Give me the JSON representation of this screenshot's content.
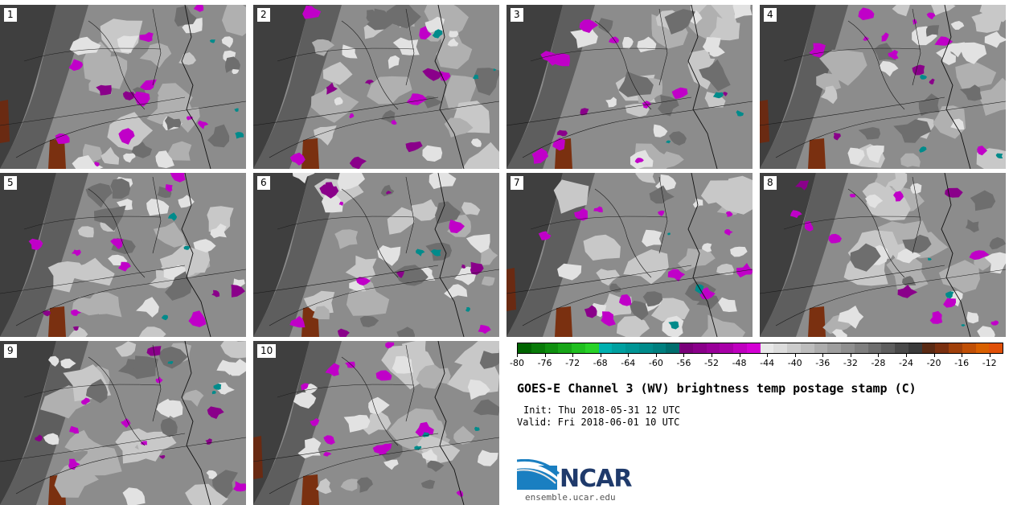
{
  "panels": [
    {
      "label": "1"
    },
    {
      "label": "2"
    },
    {
      "label": "3"
    },
    {
      "label": "4"
    },
    {
      "label": "5"
    },
    {
      "label": "6"
    },
    {
      "label": "7"
    },
    {
      "label": "8"
    },
    {
      "label": "9"
    },
    {
      "label": "10"
    }
  ],
  "colorbar": {
    "min": -80,
    "max": -10,
    "step": 2,
    "tick_labels": [
      "-80",
      "-76",
      "-72",
      "-68",
      "-64",
      "-60",
      "-56",
      "-52",
      "-48",
      "-44",
      "-40",
      "-36",
      "-32",
      "-28",
      "-24",
      "-20",
      "-16",
      "-12"
    ],
    "colors": [
      "#006400",
      "#087a08",
      "#0f8f0f",
      "#17a517",
      "#1fbf1f",
      "#28d228",
      "#00b0b0",
      "#00a0a0",
      "#009595",
      "#008b8b",
      "#007f7f",
      "#006e6e",
      "#7a007a",
      "#8a008a",
      "#990099",
      "#a800a8",
      "#bf00bf",
      "#d400d4",
      "#e8e8e8",
      "#dcdcdc",
      "#cccccc",
      "#bdbdbd",
      "#adadad",
      "#9e9e9e",
      "#8f8f8f",
      "#7f7f7f",
      "#6e6e6e",
      "#5e5e5e",
      "#4a4a4a",
      "#3a3a3a",
      "#5a2a14",
      "#7a3010",
      "#a0400a",
      "#c04f06",
      "#d86000",
      "#e05008"
    ]
  },
  "title": "GOES-E Channel 3 (WV) brightness temp postage stamp (C)",
  "init": "Init: Thu 2018-05-31 12 UTC",
  "valid": "Valid: Fri 2018-06-01 10 UTC",
  "logo": {
    "text": "NCAR",
    "url": "ensemble.ucar.edu",
    "brand_color": "#1f3a6b"
  }
}
